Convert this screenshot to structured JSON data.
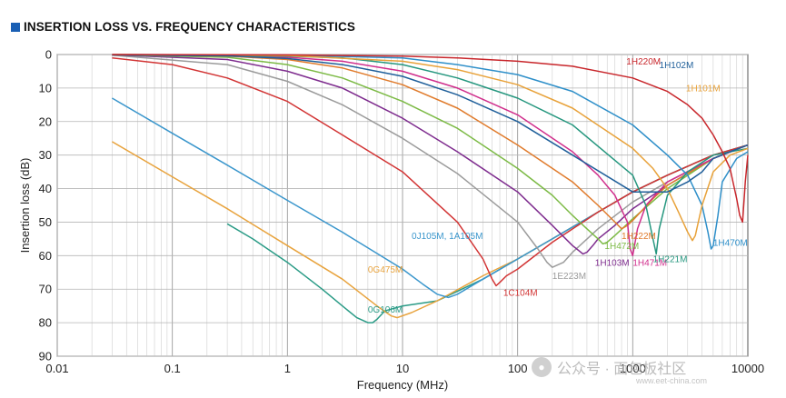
{
  "title": "INSERTION LOSS VS. FREQUENCY CHARACTERISTICS",
  "watermark": {
    "text": "公众号 · 面包板社区",
    "url": "www.eet-china.com",
    "icon": "wechat-icon"
  },
  "chart_data": {
    "type": "line",
    "title": "INSERTION LOSS VS. FREQUENCY CHARACTERISTICS",
    "xlabel": "Frequency (MHz)",
    "ylabel": "Insertion loss (dB)",
    "xscale": "log",
    "xlim": [
      0.01,
      10000
    ],
    "ylim": [
      0,
      90
    ],
    "y_inverted": true,
    "grid": true,
    "xticks": [
      "0.01",
      "0.1",
      "1",
      "10",
      "100",
      "1000",
      "10000"
    ],
    "yticks": [
      "0",
      "10",
      "20",
      "30",
      "40",
      "50",
      "60",
      "70",
      "80",
      "90"
    ],
    "series": [
      {
        "name": "0G106M",
        "color": "#2a9b86",
        "label_at": [
          5.0,
          77
        ],
        "x": [
          0.3,
          0.5,
          1,
          2,
          3,
          4,
          5,
          5.5,
          6,
          7,
          10,
          20,
          50,
          100,
          200,
          500,
          1000,
          2000,
          5000,
          10000
        ],
        "y": [
          50.5,
          55,
          62,
          70,
          75,
          78.5,
          80,
          80,
          79,
          76.5,
          75,
          73.5,
          67,
          61,
          55,
          47,
          41,
          36,
          30,
          27
        ]
      },
      {
        "name": "0G475M",
        "color": "#e8a33d",
        "label_at": [
          5.0,
          65
        ],
        "x": [
          0.03,
          0.1,
          0.3,
          1,
          3,
          6,
          8,
          9,
          12,
          20,
          50,
          100,
          200,
          500,
          1000,
          2000,
          5000,
          10000
        ],
        "y": [
          26,
          36.5,
          46,
          57,
          67,
          75,
          78,
          78.5,
          77,
          73.5,
          66,
          61,
          55,
          47,
          41,
          36,
          30,
          27
        ]
      },
      {
        "name": "0J105M, 1A105M",
        "color": "#3a96cc",
        "label_at": [
          12.0,
          55
        ],
        "x": [
          0.03,
          0.1,
          0.3,
          1,
          3,
          10,
          15,
          20,
          25,
          30,
          50,
          100,
          200,
          500,
          1000,
          2000,
          5000,
          10000
        ],
        "y": [
          13,
          23.5,
          33,
          43.5,
          53,
          64,
          68.5,
          71.5,
          72.5,
          71.5,
          67,
          61,
          55,
          47,
          41,
          36,
          30,
          27
        ]
      },
      {
        "name": "1C104M",
        "color": "#d23434",
        "label_at": [
          75,
          72
        ],
        "x": [
          0.03,
          0.1,
          0.3,
          1,
          3,
          10,
          30,
          50,
          60,
          65,
          70,
          80,
          100,
          200,
          500,
          1000,
          2000,
          5000,
          10000
        ],
        "y": [
          1,
          3,
          7,
          14,
          24,
          35,
          50,
          61,
          67,
          69,
          68,
          66,
          64,
          56,
          47,
          41,
          36,
          30,
          27
        ]
      },
      {
        "name": "1E223M",
        "color": "#9b9b9b",
        "label_at": [
          200,
          67
        ],
        "x": [
          0.03,
          0.3,
          1,
          3,
          10,
          30,
          100,
          150,
          180,
          200,
          250,
          300,
          500,
          1000,
          2000,
          5000,
          10000
        ],
        "y": [
          0.2,
          3,
          8,
          15,
          25,
          35.5,
          50,
          58,
          62,
          63.5,
          62,
          59,
          52,
          44,
          38,
          31,
          27
        ]
      },
      {
        "name": "1H103M",
        "color": "#7e2c8e",
        "label_at": [
          470,
          63
        ],
        "x": [
          0.03,
          0.3,
          1,
          3,
          10,
          30,
          100,
          200,
          300,
          370,
          400,
          450,
          500,
          700,
          1000,
          2000,
          5000,
          10000
        ],
        "y": [
          0.1,
          1.5,
          5,
          10,
          19,
          29,
          41,
          51,
          57,
          59.5,
          59,
          57,
          55,
          51,
          46,
          39,
          31,
          27
        ]
      },
      {
        "name": "1H472M",
        "color": "#7cba45",
        "label_at": [
          570,
          58
        ],
        "x": [
          0.03,
          0.3,
          1,
          3,
          10,
          30,
          100,
          200,
          300,
          400,
          500,
          550,
          600,
          700,
          1000,
          2000,
          5000,
          10000
        ],
        "y": [
          0.1,
          0.8,
          3,
          7,
          14,
          22,
          34,
          42,
          48,
          52,
          55,
          56.5,
          56,
          54,
          49,
          40,
          31,
          27
        ]
      },
      {
        "name": "1H222M",
        "color": "#e07b2c",
        "label_at": [
          800,
          55
        ],
        "x": [
          0.03,
          0.3,
          1,
          3,
          10,
          30,
          100,
          300,
          500,
          700,
          800,
          900,
          1000,
          1500,
          2000,
          5000,
          10000
        ],
        "y": [
          0.1,
          0.5,
          1.5,
          4,
          9,
          16,
          27,
          38,
          45,
          50,
          52,
          51,
          49.5,
          43,
          39,
          31,
          27
        ]
      },
      {
        "name": "1H471M",
        "color": "#d02e8c",
        "label_at": [
          1000,
          63
        ],
        "x": [
          0.03,
          0.3,
          1,
          3,
          10,
          30,
          100,
          300,
          500,
          700,
          900,
          950,
          1000,
          1100,
          1300,
          2000,
          5000,
          10000
        ],
        "y": [
          0.1,
          0.3,
          0.8,
          2,
          5,
          10,
          18,
          29,
          36,
          42,
          50,
          58,
          60,
          52,
          45,
          38,
          31,
          27
        ]
      },
      {
        "name": "1H221M",
        "color": "#26977f",
        "label_at": [
          1500,
          62
        ],
        "x": [
          0.03,
          1,
          3,
          10,
          30,
          100,
          300,
          1000,
          1300,
          1500,
          1600,
          1700,
          2000,
          3000,
          5000,
          10000
        ],
        "y": [
          0.1,
          0.5,
          1,
          3,
          7,
          13,
          21,
          36,
          45,
          55,
          59.5,
          52,
          42,
          35,
          30,
          28
        ]
      },
      {
        "name": "1H470M",
        "color": "#2e8fc9",
        "label_at": [
          5000,
          57
        ],
        "x": [
          0.03,
          1,
          10,
          30,
          100,
          300,
          1000,
          2000,
          3000,
          4000,
          4500,
          4800,
          5000,
          5500,
          6000,
          8000,
          10000
        ],
        "y": [
          0,
          0.2,
          1,
          3,
          6,
          11,
          21,
          30,
          36,
          45,
          53,
          58,
          57,
          48,
          38,
          31,
          29
        ]
      },
      {
        "name": "1H101M",
        "color": "#e8a23a",
        "label_at": [
          2900,
          11
        ],
        "x": [
          0.03,
          1,
          10,
          30,
          100,
          300,
          1000,
          1500,
          2000,
          2500,
          3000,
          3300,
          3500,
          4000,
          5000,
          7000,
          10000
        ],
        "y": [
          0,
          0.3,
          2,
          4.5,
          9,
          16,
          28,
          34,
          40,
          47,
          53,
          55.5,
          54,
          45,
          35,
          30,
          28
        ]
      },
      {
        "name": "1H102M",
        "color": "#1f5f9a",
        "label_at": [
          1700,
          4
        ],
        "x": [
          0.03,
          0.3,
          1,
          3,
          10,
          30,
          100,
          300,
          1000,
          2000,
          3000,
          4000,
          5000,
          7000,
          10000
        ],
        "y": [
          0.1,
          0.4,
          1.2,
          3,
          6.5,
          12,
          20,
          30,
          41,
          41,
          38,
          35,
          31,
          29,
          27
        ]
      },
      {
        "name": "1H220M",
        "color": "#c8262b",
        "label_at": [
          880,
          3
        ],
        "x": [
          0.03,
          1,
          10,
          30,
          100,
          300,
          1000,
          2000,
          3000,
          4000,
          5000,
          6000,
          7000,
          8000,
          8500,
          9000,
          9500,
          10000
        ],
        "y": [
          0,
          0.1,
          0.5,
          1,
          2,
          3.5,
          7,
          11,
          15,
          19,
          24,
          29,
          34,
          43,
          48,
          50,
          38,
          30
        ]
      }
    ],
    "label_colors": {
      "0G106M": "#2a9b86",
      "0G475M": "#e8a33d",
      "0J105M, 1A105M": "#3a96cc",
      "1C104M": "#d23434",
      "1E223M": "#9b9b9b",
      "1H103M": "#7e2c8e",
      "1H472M": "#7cba45",
      "1H222M": "#e07b2c",
      "1H471M": "#d02e8c",
      "1H221M": "#26977f",
      "1H470M": "#2e8fc9",
      "1H101M": "#e8a23a",
      "1H102M": "#1f5f9a",
      "1H220M": "#c8262b"
    }
  }
}
